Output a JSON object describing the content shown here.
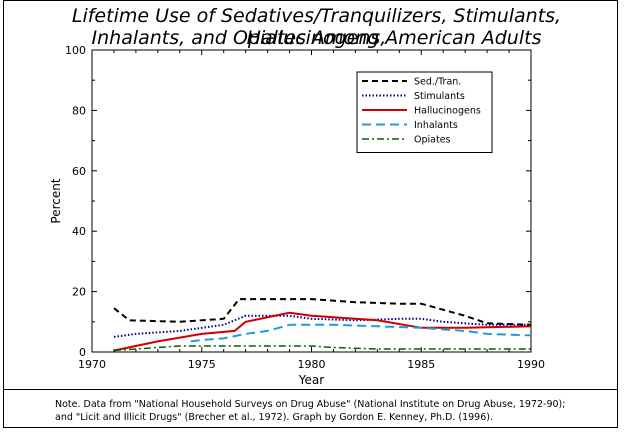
{
  "title_lines": [
    "Lifetime Use of Sedatives/Tranquilizers, Stimulants, Hallucinogens,",
    "Inhalants, and Opiates Among American Adults"
  ],
  "note_lines": [
    "Note.  Data from \"National Household Surveys on Drug Abuse\" (National Institute on Drug Abuse, 1972-90);",
    "and \"Licit and Illicit Drugs\" (Brecher et al., 1972).  Graph by Gordon E. Kenney, Ph.D. (1996)."
  ],
  "chart_data": {
    "type": "line",
    "title": "Lifetime Use of Sedatives/Tranquilizers, Stimulants, Hallucinogens, Inhalants, and Opiates Among American Adults",
    "xlabel": "Year",
    "ylabel": "Percent",
    "xlim": [
      1970,
      1990
    ],
    "ylim": [
      0,
      100
    ],
    "xticks": [
      1970,
      1975,
      1980,
      1985,
      1990
    ],
    "yticks": [
      0,
      20,
      40,
      60,
      80,
      100
    ],
    "grid": false,
    "legend_position": "top-right",
    "series": [
      {
        "name": "Sed./Tran.",
        "color": "#000000",
        "style": "dashed",
        "points": [
          [
            1971,
            14.5
          ],
          [
            1971.7,
            10.5
          ],
          [
            1974,
            10
          ],
          [
            1976,
            11
          ],
          [
            1976.7,
            17.5
          ],
          [
            1980,
            17.5
          ],
          [
            1982,
            16.5
          ],
          [
            1984,
            16
          ],
          [
            1985,
            16
          ],
          [
            1987,
            12
          ],
          [
            1988,
            9.5
          ],
          [
            1990,
            9
          ]
        ]
      },
      {
        "name": "Stimulants",
        "color": "#00008b",
        "style": "dotted",
        "points": [
          [
            1971,
            5
          ],
          [
            1972,
            6
          ],
          [
            1974,
            7
          ],
          [
            1976,
            9
          ],
          [
            1977,
            12
          ],
          [
            1979,
            12
          ],
          [
            1980,
            11
          ],
          [
            1982,
            10.5
          ],
          [
            1984,
            11
          ],
          [
            1985,
            11
          ],
          [
            1986,
            10
          ],
          [
            1988,
            9
          ],
          [
            1990,
            9
          ]
        ]
      },
      {
        "name": "Hallucinogens",
        "color": "#cc0000",
        "style": "solid",
        "points": [
          [
            1971,
            0.5
          ],
          [
            1973,
            3.5
          ],
          [
            1975,
            6
          ],
          [
            1976.5,
            7
          ],
          [
            1977,
            10
          ],
          [
            1979,
            13
          ],
          [
            1980,
            12
          ],
          [
            1983,
            10.5
          ],
          [
            1985,
            8
          ],
          [
            1987,
            8
          ],
          [
            1990,
            8.5
          ]
        ]
      },
      {
        "name": "Inhalants",
        "color": "#1e9be0",
        "style": "long-dash",
        "points": [
          [
            1974.5,
            3.5
          ],
          [
            1975,
            4
          ],
          [
            1976,
            4.5
          ],
          [
            1977,
            6
          ],
          [
            1978,
            7
          ],
          [
            1979,
            9
          ],
          [
            1981,
            9
          ],
          [
            1983,
            8.5
          ],
          [
            1985,
            8
          ],
          [
            1987,
            7
          ],
          [
            1988,
            6
          ],
          [
            1990,
            5.5
          ]
        ]
      },
      {
        "name": "Opiates",
        "color": "#006400",
        "style": "dash-dot",
        "points": [
          [
            1971,
            0.5
          ],
          [
            1972,
            1
          ],
          [
            1974,
            2
          ],
          [
            1976,
            2
          ],
          [
            1977,
            2
          ],
          [
            1980,
            2
          ],
          [
            1981,
            1.5
          ],
          [
            1983,
            1
          ],
          [
            1985,
            1
          ],
          [
            1990,
            1
          ]
        ]
      }
    ]
  }
}
